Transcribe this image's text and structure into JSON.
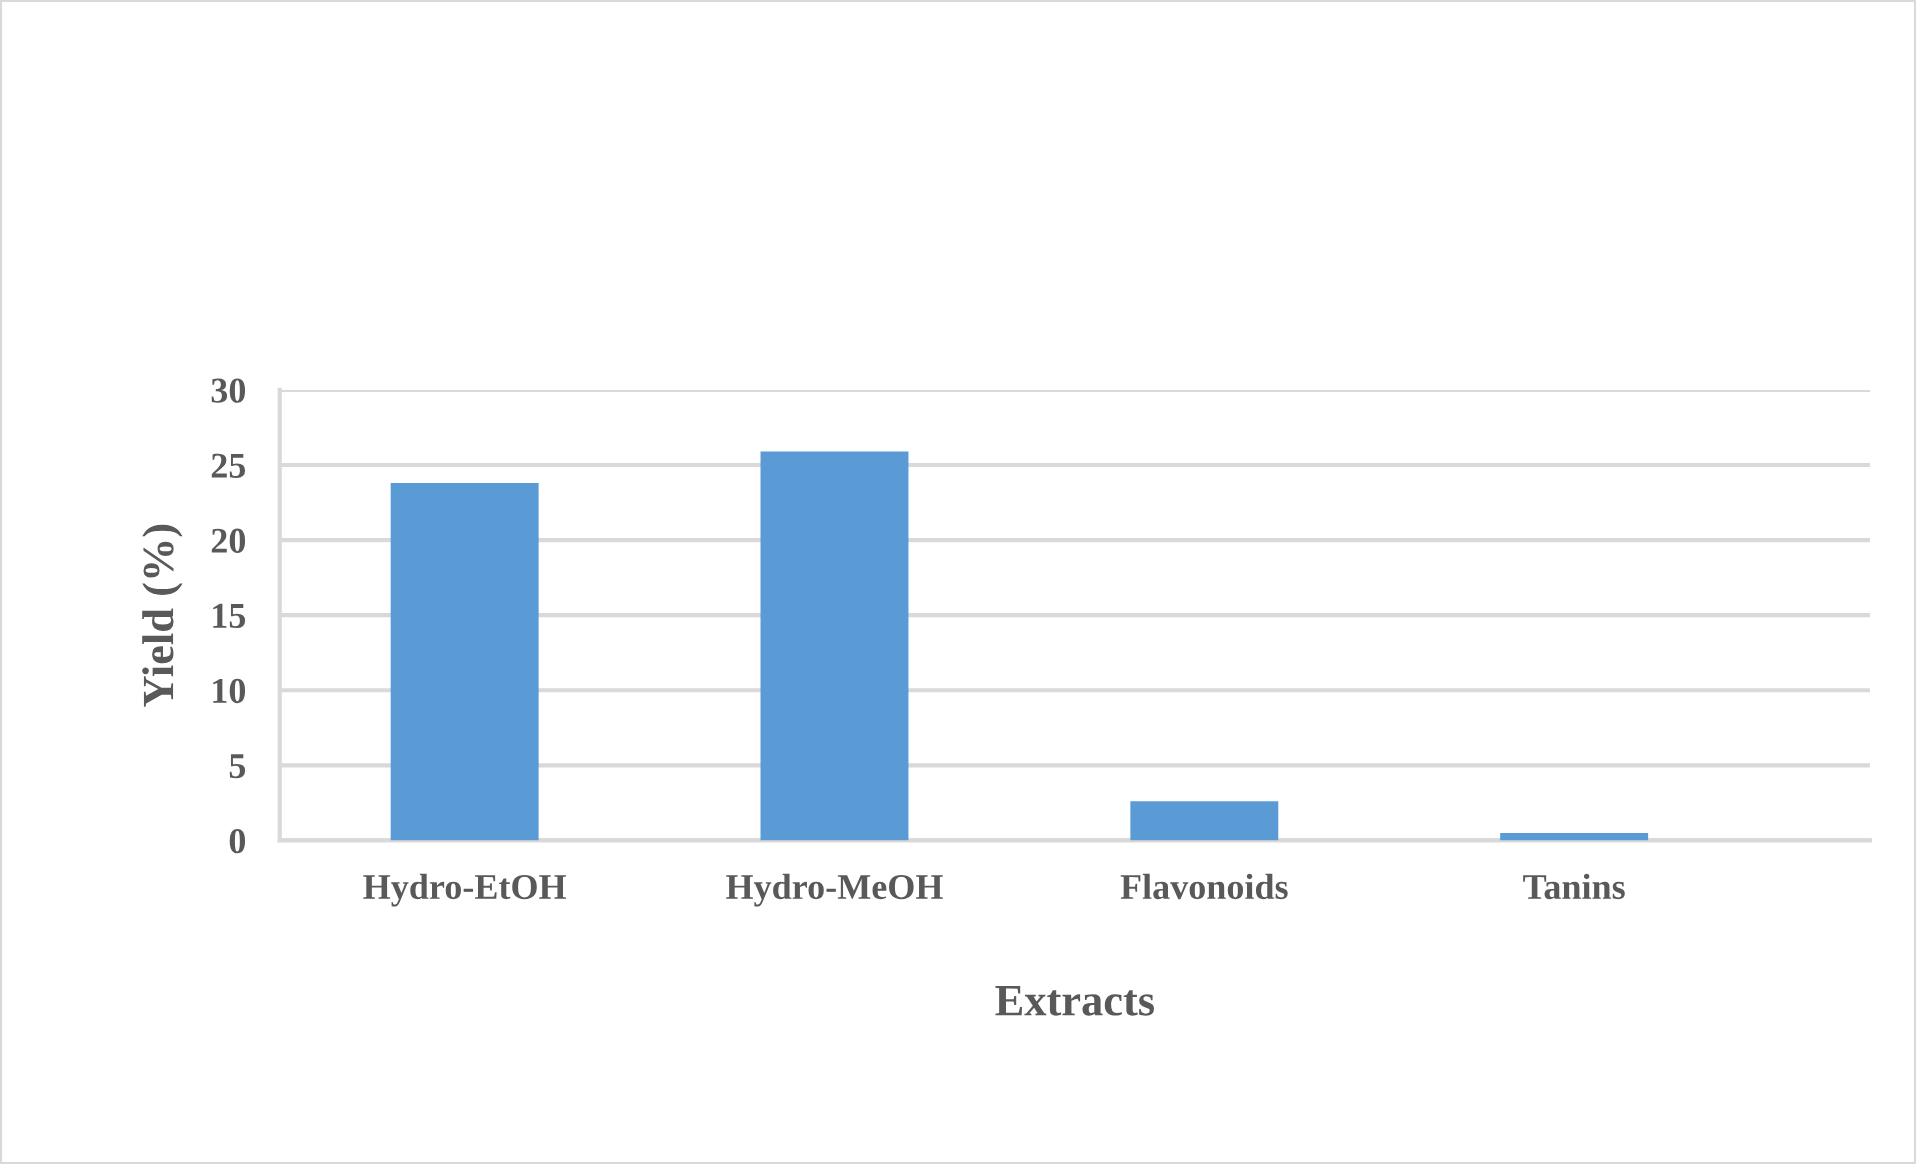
{
  "chart_data": {
    "type": "bar",
    "xlabel": "Extracts",
    "ylabel": "Yield (%)",
    "categories": [
      "Hydro-EtOH",
      "Hydro-MeOH",
      "Flavonoids",
      "Tanins"
    ],
    "values": [
      23.8,
      25.9,
      2.6,
      0.5
    ],
    "color": "#5b9bd5",
    "ylim": [
      0,
      30
    ],
    "yticks": [
      0,
      5,
      10,
      15,
      20,
      25,
      30
    ],
    "grid": "y"
  }
}
